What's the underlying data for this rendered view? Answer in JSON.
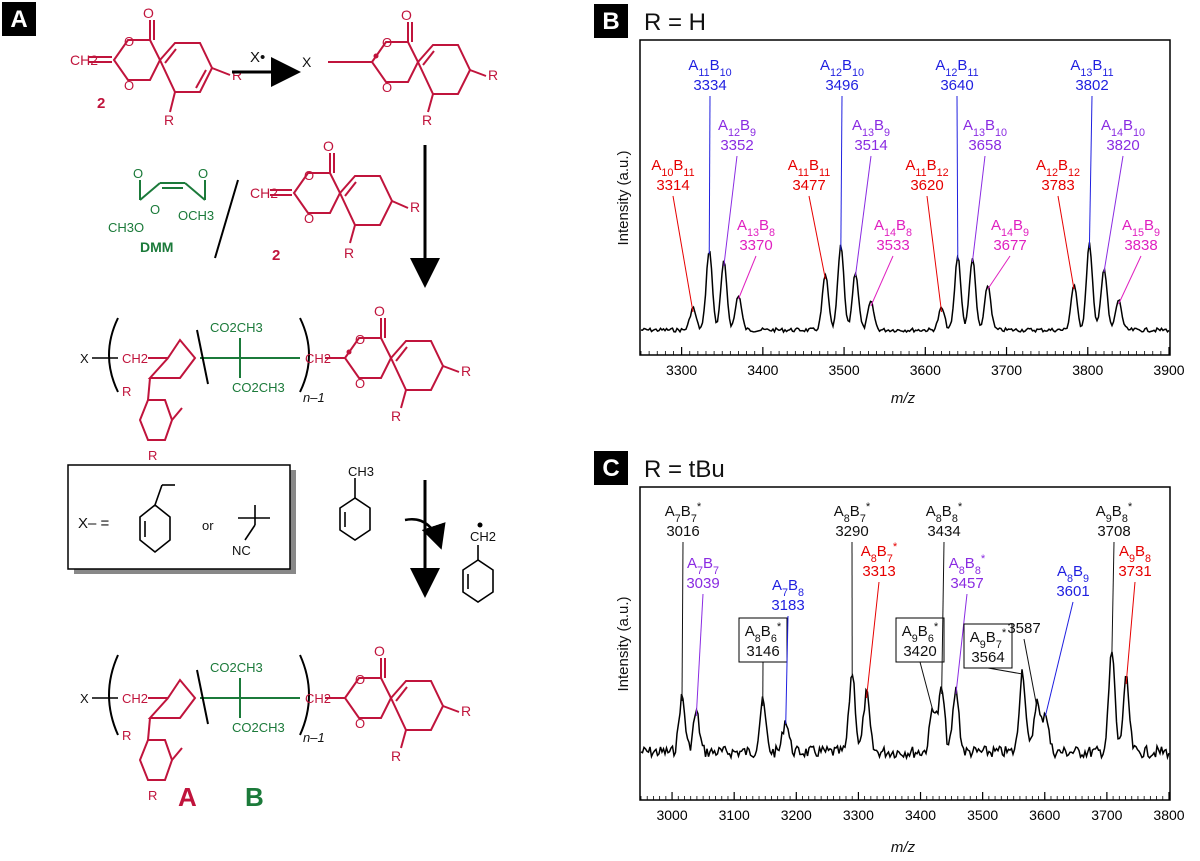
{
  "panelA": {
    "label": "A",
    "compound2": "2",
    "radical_label": "X•",
    "dmm_label": "DMM",
    "co2ch3": "CO2CH3",
    "och3": "OCH3",
    "ch3o": "CH3O",
    "r": "R",
    "x": "X",
    "n_minus_1": "n–1",
    "x_def": "X–  =",
    "or": "or",
    "nc": "NC",
    "ch3": "CH3",
    "ch2": "CH2",
    "unit_a": "A",
    "unit_b": "B",
    "colors": {
      "red": "#c0143c",
      "green": "#1b7a3a"
    }
  },
  "panelB": {
    "label": "B",
    "title": "R = H",
    "ylabel": "Intensity (a.u.)",
    "xlabel": "m/z",
    "ticks": [
      "3300",
      "3400",
      "3500",
      "3600",
      "3700",
      "3800",
      "3900"
    ],
    "peaks": [
      {
        "name": "A10B11",
        "value": "3314",
        "color": "#e60000"
      },
      {
        "name": "A11B10",
        "value": "3334",
        "color": "#1f1fe0"
      },
      {
        "name": "A12B9",
        "value": "3352",
        "color": "#8a2be2"
      },
      {
        "name": "A13B8",
        "value": "3370",
        "color": "#e020c0"
      },
      {
        "name": "A11B11",
        "value": "3477",
        "color": "#e60000"
      },
      {
        "name": "A12B10",
        "value": "3496",
        "color": "#1f1fe0"
      },
      {
        "name": "A13B9",
        "value": "3514",
        "color": "#8a2be2"
      },
      {
        "name": "A14B8",
        "value": "3533",
        "color": "#e020c0"
      },
      {
        "name": "A11B12",
        "value": "3620",
        "color": "#e60000"
      },
      {
        "name": "A12B11",
        "value": "3640",
        "color": "#1f1fe0"
      },
      {
        "name": "A13B10",
        "value": "3658",
        "color": "#8a2be2"
      },
      {
        "name": "A14B9",
        "value": "3677",
        "color": "#e020c0"
      },
      {
        "name": "A12B12",
        "value": "3783",
        "color": "#e60000"
      },
      {
        "name": "A13B11",
        "value": "3802",
        "color": "#1f1fe0"
      },
      {
        "name": "A14B10",
        "value": "3820",
        "color": "#8a2be2"
      },
      {
        "name": "A15B9",
        "value": "3838",
        "color": "#e020c0"
      }
    ]
  },
  "panelC": {
    "label": "C",
    "title": "R = tBu",
    "ylabel": "Intensity (a.u.)",
    "xlabel": "m/z",
    "ticks": [
      "3000",
      "3100",
      "3200",
      "3300",
      "3400",
      "3500",
      "3600",
      "3700",
      "3800"
    ],
    "peaks": [
      {
        "name": "A7B7*",
        "value": "3016",
        "color": "#111111"
      },
      {
        "name": "A7B7",
        "value": "3039",
        "color": "#8a2be2"
      },
      {
        "name": "A8B6*",
        "value": "3146",
        "color": "#111111"
      },
      {
        "name": "A7B8",
        "value": "3183",
        "color": "#1f1fe0"
      },
      {
        "name": "A8B7*",
        "value": "3290",
        "color": "#111111"
      },
      {
        "name": "A8B7*",
        "value": "3313",
        "color": "#e60000"
      },
      {
        "name": "A9B6*",
        "value": "3420",
        "color": "#111111"
      },
      {
        "name": "A8B8*",
        "value": "3434",
        "color": "#111111"
      },
      {
        "name": "A8B8*",
        "value": "3457",
        "color": "#8a2be2"
      },
      {
        "name": "A9B7*",
        "value": "3564",
        "color": "#111111"
      },
      {
        "name": "",
        "value": "3587",
        "color": "#111111"
      },
      {
        "name": "A8B9",
        "value": "3601",
        "color": "#1f1fe0"
      },
      {
        "name": "A9B8*",
        "value": "3708",
        "color": "#111111"
      },
      {
        "name": "A9B8",
        "value": "3731",
        "color": "#e60000"
      }
    ]
  }
}
